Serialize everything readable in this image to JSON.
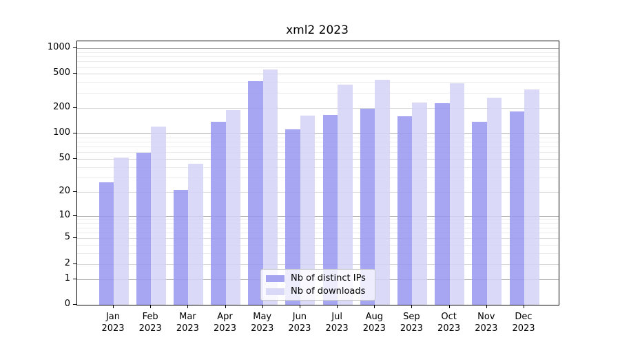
{
  "chart_data": {
    "type": "bar",
    "title": "xml2 2023",
    "scale": "log10(1+v)",
    "year": "2023",
    "months": [
      "Jan",
      "Feb",
      "Mar",
      "Apr",
      "May",
      "Jun",
      "Jul",
      "Aug",
      "Sep",
      "Oct",
      "Nov",
      "Dec"
    ],
    "series": [
      {
        "name": "Nb of distinct IPs",
        "color": "rgba(150,150,240,0.85)",
        "legend_color": "#a4a4f0",
        "values": [
          26,
          59,
          21,
          136,
          412,
          112,
          166,
          195,
          158,
          226,
          136,
          181
        ]
      },
      {
        "name": "Nb of downloads",
        "color": "rgba(211,211,247,0.85)",
        "legend_color": "#d9d9f7",
        "values": [
          52,
          121,
          44,
          190,
          560,
          161,
          374,
          430,
          231,
          391,
          262,
          332
        ]
      }
    ],
    "y_axis": {
      "ticks": [
        0,
        1,
        2,
        5,
        10,
        20,
        50,
        100,
        200,
        500,
        1000
      ],
      "tick_labels": [
        "0",
        "1",
        "2",
        "5",
        "10",
        "20",
        "50",
        "100",
        "200",
        "500",
        "1000"
      ],
      "minor_gridlines": [
        3,
        4,
        6,
        7,
        8,
        9,
        30,
        40,
        60,
        70,
        80,
        90,
        300,
        400,
        600,
        700,
        800,
        900
      ],
      "ylim": [
        0,
        1205
      ]
    },
    "legend_position": "lower center",
    "grid": true
  },
  "colors": {
    "grid_major": "#ababab",
    "grid_mid": "#d6d6d6",
    "grid_minor": "#ebebeb",
    "axis": "#000000",
    "background": "#ffffff"
  }
}
